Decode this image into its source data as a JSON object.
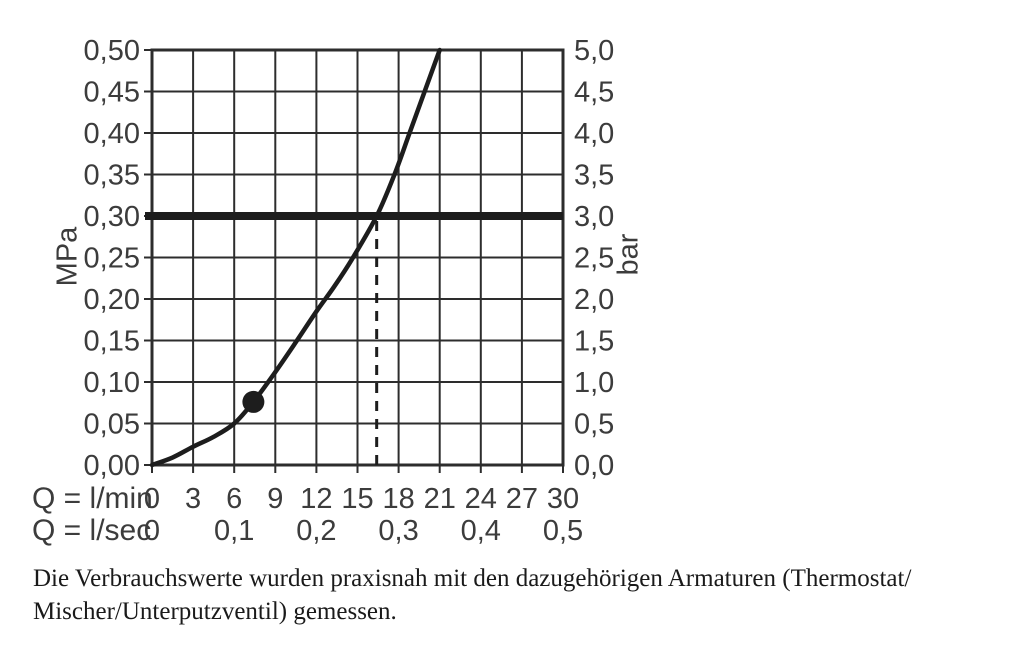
{
  "chart_data": {
    "type": "line",
    "title": "",
    "description": "Flow rate vs. pressure loss curve (shower/fitting consumption diagram)",
    "grid": true,
    "x_axes": [
      {
        "label": "Q = l/min",
        "range": [
          0,
          30
        ],
        "tick_step": 3,
        "ticks": [
          "0",
          "3",
          "6",
          "9",
          "12",
          "15",
          "18",
          "21",
          "24",
          "27",
          "30"
        ]
      },
      {
        "label": "Q = l/sec",
        "range": [
          0,
          0.5
        ],
        "ticks": [
          "0",
          "0,1",
          "0,2",
          "0,3",
          "0,4",
          "0,5"
        ],
        "tick_positions_lmin": [
          0,
          6,
          12,
          18,
          24,
          30
        ]
      }
    ],
    "y_axes": [
      {
        "label": "MPa",
        "range": [
          0,
          0.5
        ],
        "tick_step": 0.05,
        "ticks_top_to_bottom": [
          "0,50",
          "0,45",
          "0,40",
          "0,35",
          "0,30",
          "0,25",
          "0,20",
          "0,15",
          "0,10",
          "0,05",
          "0,00"
        ]
      },
      {
        "label": "bar",
        "range": [
          0,
          5
        ],
        "tick_step": 0.5,
        "ticks_top_to_bottom": [
          "5,0",
          "4,5",
          "4,0",
          "3,5",
          "3,0",
          "2,5",
          "2,0",
          "1,5",
          "1,0",
          "0,5",
          "0,0"
        ]
      }
    ],
    "series": [
      {
        "name": "pressure-flow-curve",
        "points_q_lmin_p_mpa": [
          [
            0,
            0
          ],
          [
            1.5,
            0.009
          ],
          [
            3,
            0.022
          ],
          [
            4.5,
            0.034
          ],
          [
            6,
            0.05
          ],
          [
            7.4,
            0.076
          ],
          [
            9,
            0.112
          ],
          [
            10.5,
            0.148
          ],
          [
            12,
            0.185
          ],
          [
            13.3,
            0.215
          ],
          [
            14.6,
            0.248
          ],
          [
            16.4,
            0.3
          ],
          [
            17.7,
            0.35
          ],
          [
            18.8,
            0.4
          ],
          [
            19.9,
            0.45
          ],
          [
            21,
            0.5
          ]
        ]
      }
    ],
    "marker_point": {
      "q_lmin": 7.4,
      "p_mpa": 0.076
    },
    "reference_line": {
      "p_mpa": 0.3,
      "bar": 3.0
    },
    "dashed_guide": {
      "q_lmin": 16.4,
      "from_p": 0,
      "to_p": 0.3
    }
  },
  "caption": {
    "line1": "Die Verbrauchswerte wurden praxisnah mit den dazugehörigen Armaturen (Thermostat/",
    "line2": "Mischer/Unterputzventil) gemessen."
  },
  "colors": {
    "background": "#ffffff",
    "grid": "#2d2d2d",
    "frame": "#2d2d2d",
    "curve": "#1d1d1d",
    "tick_text": "#3c3c3c",
    "caption_text": "#1a1a1a"
  }
}
